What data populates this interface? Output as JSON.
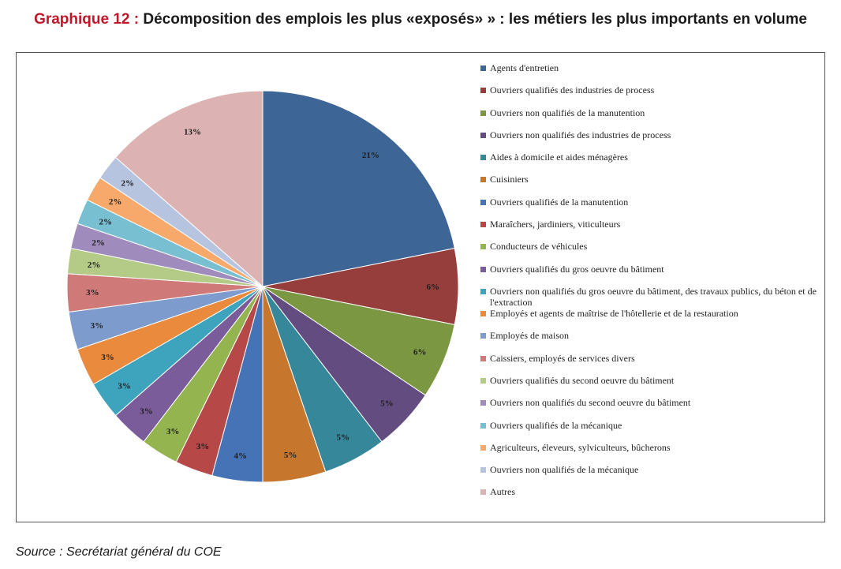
{
  "title": {
    "prefix": "Graphique 12 :",
    "text": "Décomposition des emplois les plus «exposés» » : les métiers les plus importants en volume"
  },
  "source": "Source : Secrétariat général du COE",
  "chart_data": {
    "type": "pie",
    "legend_position": "right",
    "value_unit": "%",
    "slices": [
      {
        "label": "Agents d'entretien",
        "value": 21,
        "display": "21%",
        "color": "#3d6596"
      },
      {
        "label": "Ouvriers qualifiés des industries de process",
        "value": 6,
        "display": "6%",
        "color": "#963e3b"
      },
      {
        "label": "Ouvriers non qualifiés de la manutention",
        "value": 6,
        "display": "6%",
        "color": "#7b9741"
      },
      {
        "label": "Ouvriers non qualifiés des industries de process",
        "value": 5,
        "display": "5%",
        "color": "#634c80"
      },
      {
        "label": "Aides à domicile et aides ménagères",
        "value": 5,
        "display": "5%",
        "color": "#37879a"
      },
      {
        "label": "Cuisiniers",
        "value": 5,
        "display": "5%",
        "color": "#c7772d"
      },
      {
        "label": "Ouvriers qualifiés de la manutention",
        "value": 4,
        "display": "4%",
        "color": "#4573b5"
      },
      {
        "label": "Maraîchers, jardiniers, viticulteurs",
        "value": 3,
        "display": "3%",
        "color": "#b64848"
      },
      {
        "label": "Conducteurs de véhicules",
        "value": 3,
        "display": "3%",
        "color": "#94b450"
      },
      {
        "label": "Ouvriers qualifiés du gros oeuvre du bâtiment",
        "value": 3,
        "display": "3%",
        "color": "#7a5c9a"
      },
      {
        "label": "Ouvriers non qualifiés du gros oeuvre du bâtiment, des travaux publics, du béton et de l'extraction",
        "value": 3,
        "display": "3%",
        "color": "#3ea3bc"
      },
      {
        "label": "Employés et agents de maîtrise de l'hôtellerie et de la restauration",
        "value": 3,
        "display": "3%",
        "color": "#e98a3c"
      },
      {
        "label": "Employés de maison",
        "value": 3,
        "display": "3%",
        "color": "#7d9bcc"
      },
      {
        "label": "Caissiers, employés de services divers",
        "value": 3,
        "display": "3%",
        "color": "#cf7a78"
      },
      {
        "label": "Ouvriers qualifiés du second oeuvre du bâtiment",
        "value": 2,
        "display": "2%",
        "color": "#b3cb86"
      },
      {
        "label": "Ouvriers non qualifiés du second oeuvre du bâtiment",
        "value": 2,
        "display": "2%",
        "color": "#a08bbd"
      },
      {
        "label": "Ouvriers qualifiés de la mécanique",
        "value": 2,
        "display": "2%",
        "color": "#77bfd1"
      },
      {
        "label": "Agriculteurs, éleveurs, sylviculteurs, bûcherons",
        "value": 2,
        "display": "2%",
        "color": "#f6a96b"
      },
      {
        "label": "Ouvriers non qualifiés de la mécanique",
        "value": 2,
        "display": "2%",
        "color": "#b6c4e0"
      },
      {
        "label": "Autres",
        "value": 13,
        "display": "13%",
        "color": "#dcb3b2"
      }
    ]
  }
}
